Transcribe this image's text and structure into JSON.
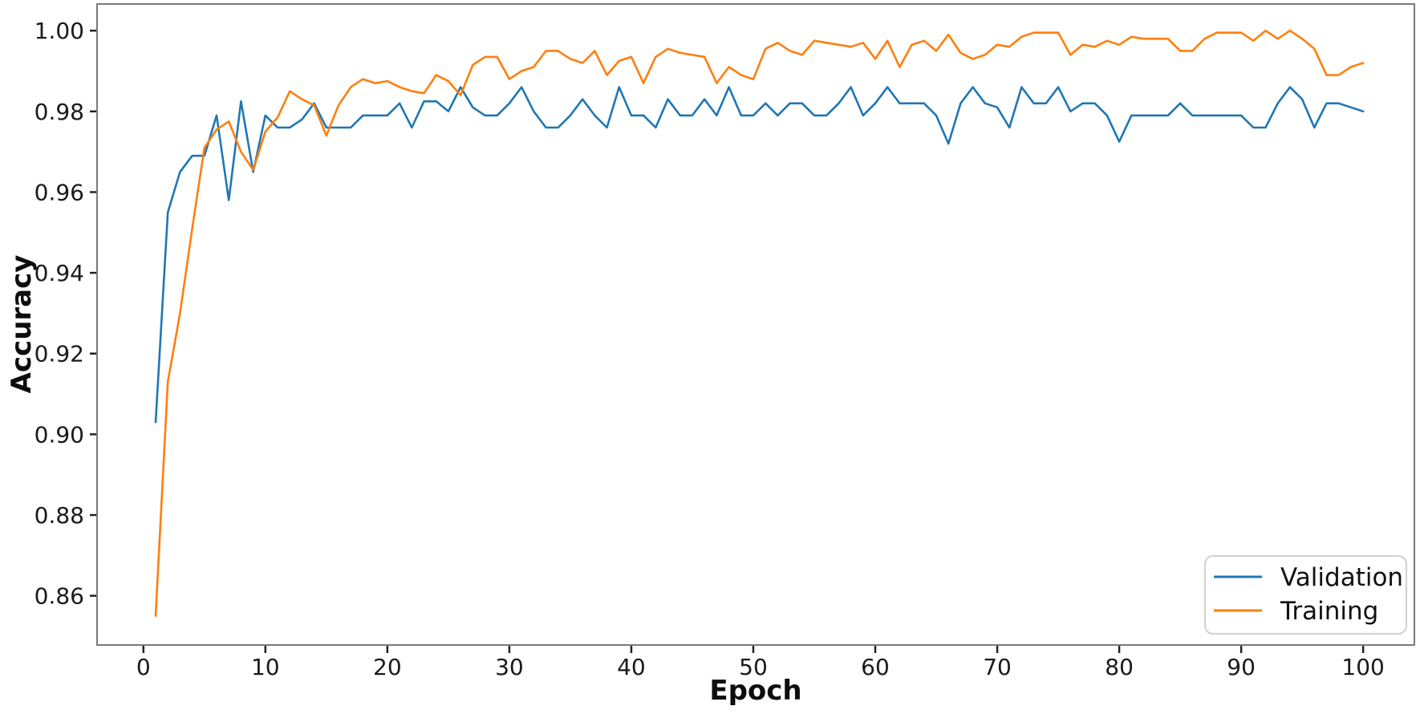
{
  "figure": {
    "background": "#ffffff",
    "plot_border_color": "#7a7a7a"
  },
  "chart_data": {
    "type": "line",
    "title": "",
    "xlabel": "Epoch",
    "ylabel": "Accuracy",
    "xlim": [
      -3.8,
      104.2
    ],
    "ylim": [
      0.8478,
      1.0066
    ],
    "grid": false,
    "legend_position": "lower right",
    "xticks": [
      {
        "value": 0,
        "label": "0"
      },
      {
        "value": 10,
        "label": "10"
      },
      {
        "value": 20,
        "label": "20"
      },
      {
        "value": 30,
        "label": "30"
      },
      {
        "value": 40,
        "label": "40"
      },
      {
        "value": 50,
        "label": "50"
      },
      {
        "value": 60,
        "label": "60"
      },
      {
        "value": 70,
        "label": "70"
      },
      {
        "value": 80,
        "label": "80"
      },
      {
        "value": 90,
        "label": "90"
      },
      {
        "value": 100,
        "label": "100"
      }
    ],
    "yticks": [
      {
        "value": 0.86,
        "label": "0.86"
      },
      {
        "value": 0.88,
        "label": "0.88"
      },
      {
        "value": 0.9,
        "label": "0.90"
      },
      {
        "value": 0.92,
        "label": "0.92"
      },
      {
        "value": 0.94,
        "label": "0.94"
      },
      {
        "value": 0.96,
        "label": "0.96"
      },
      {
        "value": 0.98,
        "label": "0.98"
      },
      {
        "value": 1.0,
        "label": "1.00"
      }
    ],
    "x": [
      1,
      2,
      3,
      4,
      5,
      6,
      7,
      8,
      9,
      10,
      11,
      12,
      13,
      14,
      15,
      16,
      17,
      18,
      19,
      20,
      21,
      22,
      23,
      24,
      25,
      26,
      27,
      28,
      29,
      30,
      31,
      32,
      33,
      34,
      35,
      36,
      37,
      38,
      39,
      40,
      41,
      42,
      43,
      44,
      45,
      46,
      47,
      48,
      49,
      50,
      51,
      52,
      53,
      54,
      55,
      56,
      57,
      58,
      59,
      60,
      61,
      62,
      63,
      64,
      65,
      66,
      67,
      68,
      69,
      70,
      71,
      72,
      73,
      74,
      75,
      76,
      77,
      78,
      79,
      80,
      81,
      82,
      83,
      84,
      85,
      86,
      87,
      88,
      89,
      90,
      91,
      92,
      93,
      94,
      95,
      96,
      97,
      98,
      99,
      100
    ],
    "series": [
      {
        "name": "Validation",
        "color": "#1f77b4",
        "values": [
          0.903,
          0.955,
          0.965,
          0.969,
          0.969,
          0.979,
          0.958,
          0.9825,
          0.965,
          0.979,
          0.976,
          0.976,
          0.978,
          0.982,
          0.976,
          0.976,
          0.976,
          0.979,
          0.979,
          0.979,
          0.982,
          0.976,
          0.9825,
          0.9825,
          0.98,
          0.986,
          0.981,
          0.979,
          0.979,
          0.982,
          0.986,
          0.98,
          0.976,
          0.976,
          0.979,
          0.983,
          0.979,
          0.976,
          0.986,
          0.979,
          0.979,
          0.976,
          0.983,
          0.979,
          0.979,
          0.983,
          0.979,
          0.986,
          0.979,
          0.979,
          0.982,
          0.979,
          0.982,
          0.982,
          0.979,
          0.979,
          0.982,
          0.986,
          0.979,
          0.982,
          0.986,
          0.982,
          0.982,
          0.982,
          0.979,
          0.972,
          0.982,
          0.986,
          0.982,
          0.981,
          0.976,
          0.986,
          0.982,
          0.982,
          0.986,
          0.98,
          0.982,
          0.982,
          0.979,
          0.9725,
          0.979,
          0.979,
          0.979,
          0.979,
          0.982,
          0.979,
          0.979,
          0.979,
          0.979,
          0.979,
          0.976,
          0.976,
          0.982,
          0.986,
          0.983,
          0.976,
          0.982,
          0.982,
          0.981,
          0.98
        ]
      },
      {
        "name": "Training",
        "color": "#ff7f0e",
        "values": [
          0.855,
          0.913,
          0.93,
          0.951,
          0.971,
          0.9755,
          0.9775,
          0.97,
          0.9655,
          0.975,
          0.9785,
          0.985,
          0.983,
          0.9815,
          0.974,
          0.9815,
          0.986,
          0.988,
          0.987,
          0.9875,
          0.986,
          0.985,
          0.9845,
          0.989,
          0.9875,
          0.984,
          0.9915,
          0.9935,
          0.9935,
          0.988,
          0.99,
          0.991,
          0.995,
          0.995,
          0.993,
          0.992,
          0.995,
          0.989,
          0.9925,
          0.9935,
          0.987,
          0.9935,
          0.9955,
          0.9945,
          0.994,
          0.9935,
          0.987,
          0.991,
          0.989,
          0.988,
          0.9955,
          0.997,
          0.995,
          0.994,
          0.9975,
          0.997,
          0.9965,
          0.996,
          0.997,
          0.993,
          0.9975,
          0.991,
          0.9965,
          0.9975,
          0.995,
          0.999,
          0.9945,
          0.993,
          0.994,
          0.9965,
          0.996,
          0.9985,
          0.9995,
          0.9995,
          0.9995,
          0.994,
          0.9965,
          0.996,
          0.9975,
          0.9965,
          0.9985,
          0.998,
          0.998,
          0.998,
          0.995,
          0.995,
          0.998,
          0.9995,
          0.9995,
          0.9995,
          0.9975,
          1.0,
          0.998,
          1.0,
          0.998,
          0.9955,
          0.989,
          0.989,
          0.991,
          0.992
        ]
      }
    ]
  }
}
